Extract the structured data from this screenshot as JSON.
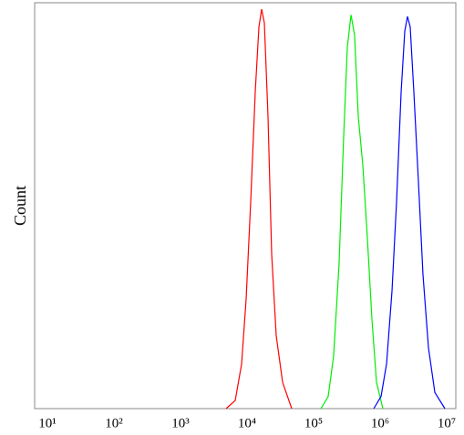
{
  "chart_data": {
    "type": "line",
    "y_label": "Count",
    "xscale": "log",
    "xlim": [
      6.43,
      13700000
    ],
    "ylim": [
      0,
      100
    ],
    "xticks": [
      {
        "value": 10,
        "label": "10¹"
      },
      {
        "value": 100,
        "label": "10²"
      },
      {
        "value": 1000,
        "label": "10³"
      },
      {
        "value": 10000,
        "label": "10⁴"
      },
      {
        "value": 100000,
        "label": "10⁵"
      },
      {
        "value": 1000000,
        "label": "10⁶"
      },
      {
        "value": 10000000,
        "label": "10⁷"
      }
    ],
    "series": [
      {
        "color": "#ff0000",
        "x": [
          4840,
          6640,
          8280,
          9690,
          11350,
          13280,
          15070,
          16560,
          18200,
          20650,
          23440,
          27420,
          34200,
          46900
        ],
        "values": [
          0,
          2,
          11,
          27,
          51,
          78,
          94,
          98.4,
          95,
          72,
          38,
          18,
          6.5,
          0
        ]
      },
      {
        "color": "#00ee00",
        "x": [
          128800,
          165600,
          200000,
          242000,
          283000,
          321000,
          365000,
          413000,
          469000,
          549000,
          643000,
          753000,
          881000,
          1099000
        ],
        "values": [
          0,
          3,
          13,
          36,
          67,
          89,
          97,
          92,
          72,
          60,
          42,
          22,
          6.5,
          0
        ]
      },
      {
        "color": "#0000ff",
        "x": [
          802000,
          1032000,
          1248000,
          1507000,
          1765000,
          2067000,
          2344000,
          2576000,
          2831000,
          3210000,
          3758000,
          4401000,
          5321000,
          6633000,
          9396000
        ],
        "values": [
          0,
          3,
          11,
          29,
          51,
          78,
          93,
          96.6,
          94,
          78,
          56,
          33,
          15,
          4,
          0
        ]
      }
    ]
  }
}
